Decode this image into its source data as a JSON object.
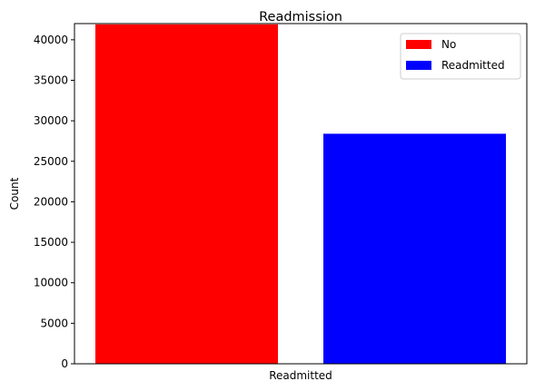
{
  "chart_data": {
    "type": "bar",
    "title": "Readmission",
    "xlabel": "Readmitted",
    "ylabel": "Count",
    "ylim": [
      0,
      42000
    ],
    "yticks": [
      0,
      5000,
      10000,
      15000,
      20000,
      25000,
      30000,
      35000,
      40000
    ],
    "grid": false,
    "legend_position": "top-right",
    "series": [
      {
        "name": "No",
        "value": 41900,
        "color": "#ff0000"
      },
      {
        "name": "Readmitted",
        "value": 28400,
        "color": "#0000ff"
      }
    ]
  }
}
